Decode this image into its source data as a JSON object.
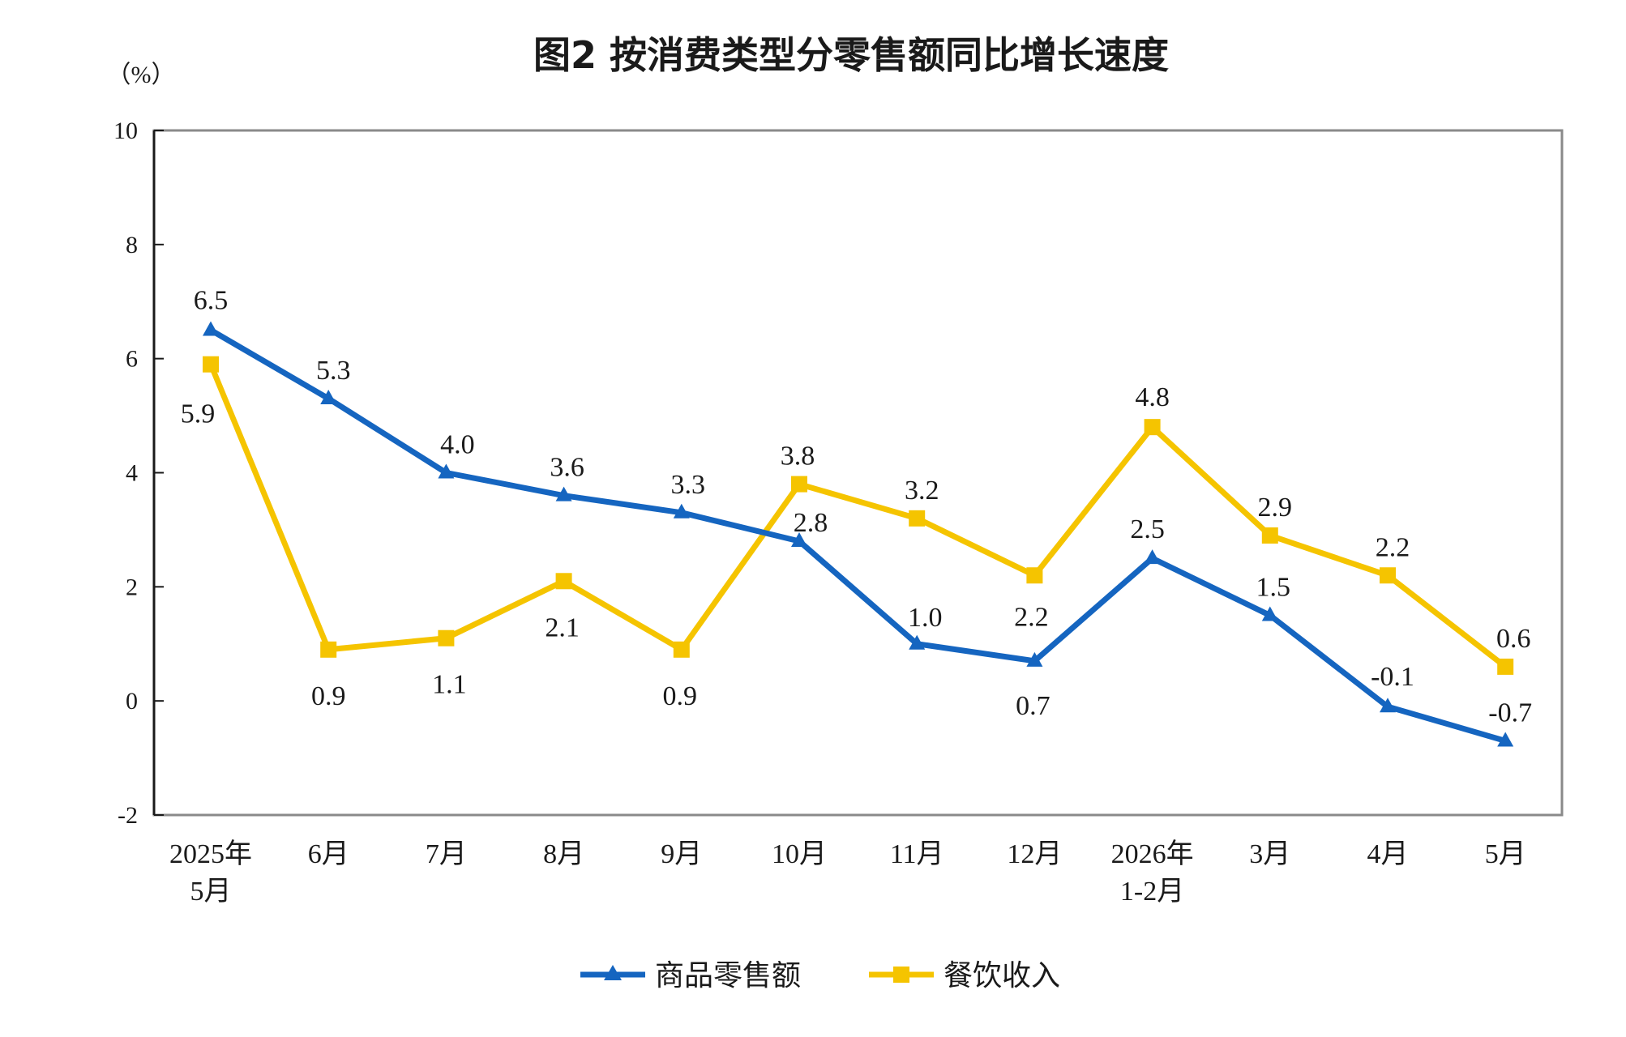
{
  "chart_data": {
    "type": "line",
    "title": "图2 按消费类型分零售额同比增长速度",
    "unit": "（%）",
    "ylim": [
      -2,
      10
    ],
    "yticks": [
      10,
      8,
      6,
      4,
      2,
      0,
      -2
    ],
    "categories": [
      [
        "2025年",
        "5月"
      ],
      [
        "6月"
      ],
      [
        "7月"
      ],
      [
        "8月"
      ],
      [
        "9月"
      ],
      [
        "10月"
      ],
      [
        "11月"
      ],
      [
        "12月"
      ],
      [
        "2026年",
        "1-2月"
      ],
      [
        "3月"
      ],
      [
        "4月"
      ],
      [
        "5月"
      ]
    ],
    "series": [
      {
        "name": "商品零售额",
        "color": "#1565c0",
        "marker": "triangle",
        "values": [
          6.5,
          5.3,
          4.0,
          3.6,
          3.3,
          2.8,
          1.0,
          0.7,
          2.5,
          1.5,
          -0.1,
          -0.7
        ],
        "labels": [
          "6.5",
          "5.3",
          "4.0",
          "3.6",
          "3.3",
          "2.8",
          "1.0",
          "0.7",
          "2.5",
          "1.5",
          "-0.1",
          "-0.7"
        ]
      },
      {
        "name": "餐饮收入",
        "color": "#f5c400",
        "marker": "square",
        "values": [
          5.9,
          0.9,
          1.1,
          2.1,
          0.9,
          3.8,
          3.2,
          2.2,
          4.8,
          2.9,
          2.2,
          0.6
        ],
        "labels": [
          "5.9",
          "0.9",
          "1.1",
          "2.1",
          "0.9",
          "3.8",
          "3.2",
          "2.2",
          "4.8",
          "2.9",
          "2.2",
          "0.6"
        ]
      }
    ],
    "grid": false,
    "legend": "bottom"
  }
}
